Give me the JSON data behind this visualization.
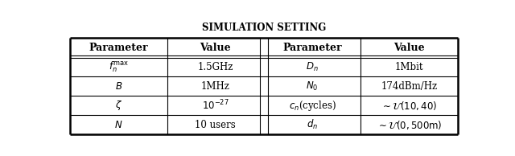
{
  "title": "SIMULATION SETTING",
  "col_headers": [
    "Parameter",
    "Value",
    "Parameter",
    "Value"
  ],
  "rows": [
    [
      "$f_n^{\\mathrm{max}}$",
      "1.5GHz",
      "$D_n$",
      "1Mbit"
    ],
    [
      "$B$",
      "1MHz",
      "$N_0$",
      "174dBm/Hz"
    ],
    [
      "$\\zeta$",
      "$10^{-27}$",
      "$c_n$(cycles)",
      "$\\sim\\mathcal{U}(10,40)$"
    ],
    [
      "$N$",
      "10 users",
      "$d_n$",
      "$\\sim\\mathcal{U}(0,500\\mathrm{m})$"
    ]
  ],
  "figsize": [
    6.4,
    1.94
  ],
  "dpi": 100,
  "background_color": "#ffffff",
  "title_fontsize": 8.5,
  "header_fontsize": 9,
  "cell_fontsize": 8.5
}
